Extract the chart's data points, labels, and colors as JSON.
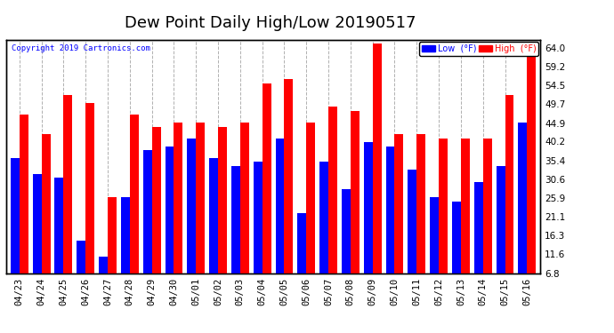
{
  "title": "Dew Point Daily High/Low 20190517",
  "copyright": "Copyright 2019 Cartronics.com",
  "categories": [
    "04/23",
    "04/24",
    "04/25",
    "04/26",
    "04/27",
    "04/28",
    "04/29",
    "04/30",
    "05/01",
    "05/02",
    "05/03",
    "05/04",
    "05/05",
    "05/06",
    "05/07",
    "05/08",
    "05/09",
    "05/10",
    "05/11",
    "05/12",
    "05/13",
    "05/14",
    "05/15",
    "05/16"
  ],
  "low_values": [
    36,
    32,
    31,
    15,
    11,
    26,
    38,
    39,
    41,
    36,
    34,
    35,
    41,
    22,
    35,
    28,
    40,
    39,
    33,
    26,
    25,
    30,
    34,
    45
  ],
  "high_values": [
    47,
    42,
    52,
    50,
    26,
    47,
    44,
    45,
    45,
    44,
    45,
    55,
    56,
    45,
    49,
    48,
    65,
    42,
    42,
    41,
    41,
    41,
    52,
    65
  ],
  "low_color": "#0000ff",
  "high_color": "#ff0000",
  "bg_color": "#ffffff",
  "plot_bg_color": "#ffffff",
  "ylim_min": 6.8,
  "ylim_max": 66.0,
  "yticks": [
    6.8,
    11.6,
    16.3,
    21.1,
    25.9,
    30.6,
    35.4,
    40.2,
    44.9,
    49.7,
    54.5,
    59.2,
    64.0
  ],
  "grid_color": "#b0b0b0",
  "title_fontsize": 13,
  "tick_fontsize": 7.5,
  "bar_width": 0.4,
  "legend_low_label": "Low  (°F)",
  "legend_high_label": "High  (°F)"
}
